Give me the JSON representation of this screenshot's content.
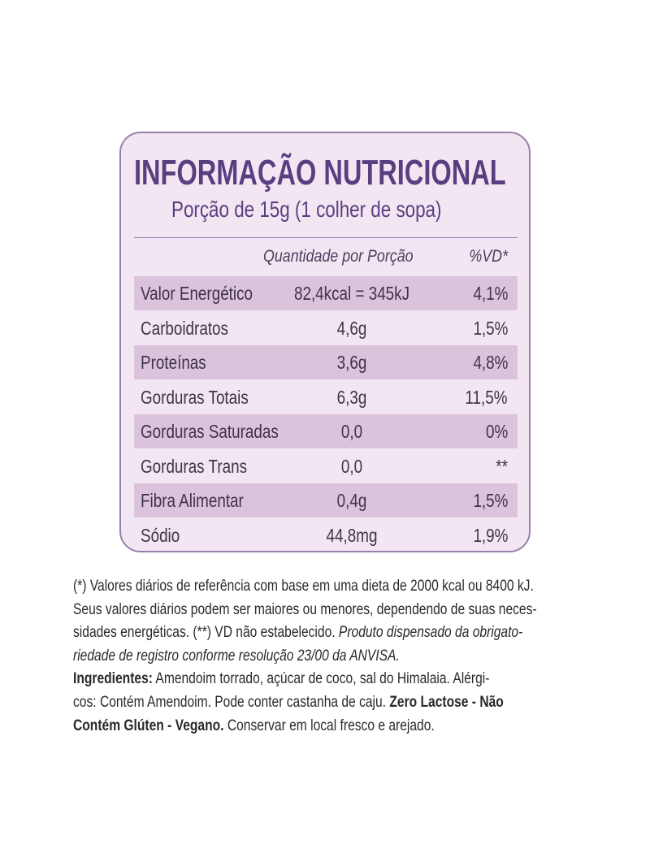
{
  "panel": {
    "title": "INFORMAÇÃO NUTRICIONAL",
    "subtitle": "Porção de 15g (1 colher de sopa)"
  },
  "table": {
    "header": [
      "Quantidade por Porção",
      "%VD*"
    ],
    "rows": [
      [
        "Valor Energético",
        "82,4kcal = 345kJ",
        "4,1%"
      ],
      [
        "Carboidratos",
        "4,6g",
        "1,5%"
      ],
      [
        "Proteínas",
        "3,6g",
        "4,8%"
      ],
      [
        "Gorduras Totais",
        "6,3g",
        "11,5%"
      ],
      [
        "Gorduras Saturadas",
        "0,0",
        "0%"
      ],
      [
        "Gorduras Trans",
        "0,0",
        "**"
      ],
      [
        "Fibra Alimentar",
        "0,4g",
        "1,5%"
      ],
      [
        "Sódio",
        "44,8mg",
        "1,9%"
      ]
    ]
  },
  "notes": {
    "lines": [
      [
        "(*) Valores diários de referência com base em uma dieta de 2000 kcal ou 8400 kJ."
      ],
      [
        "Seus valores diários podem ser maiores ou menores, dependendo de suas neces-"
      ],
      [
        "sidades energéticas. (**) VD não estabelecido. ",
        "Produto dispensado da obrigato-"
      ],
      [
        "riedade de registro conforme resolução 23/00 da ANVISA."
      ],
      [
        "Ingredientes:",
        " Amendoim torrado, açúcar de coco, sal do Himalaia. Alérgi-"
      ],
      [
        "cos: Contém Amendoim. Pode conter castanha de caju. ",
        "Zero Lactose - Não"
      ],
      [
        "Contém Glúten - Vegano.",
        " Conservar em local fresco e arejado."
      ]
    ]
  }
}
